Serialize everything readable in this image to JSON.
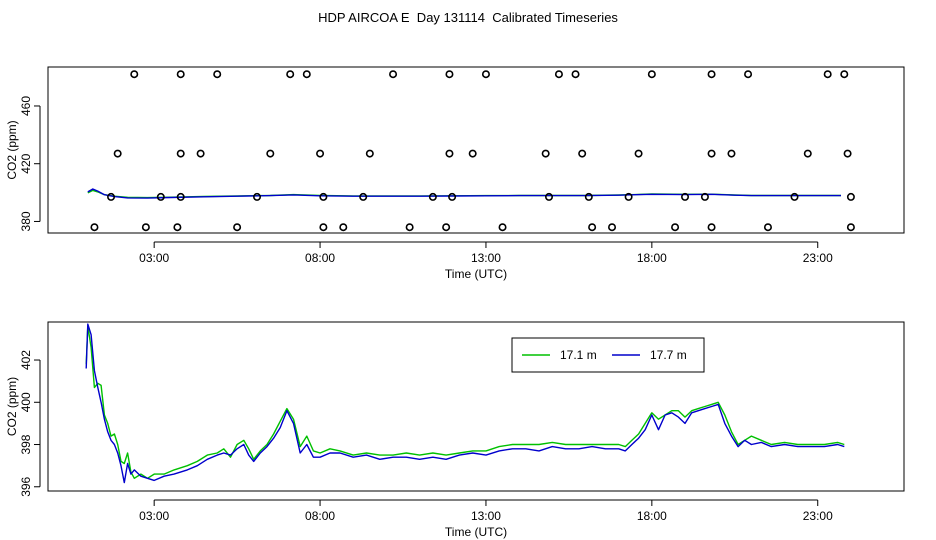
{
  "title": "HDP AIRCOA E  Day 131114  Calibrated Timeseries",
  "chart_data": [
    {
      "type": "scatter+line",
      "xlabel": "Time (UTC)",
      "ylabel": "CO2 (ppm)",
      "x_ticks": [
        {
          "hour": 3,
          "label": "03:00"
        },
        {
          "hour": 8,
          "label": "08:00"
        },
        {
          "hour": 13,
          "label": "13:00"
        },
        {
          "hour": 18,
          "label": "18:00"
        },
        {
          "hour": 23,
          "label": "23:00"
        }
      ],
      "y_ticks": [
        {
          "value": 380,
          "label": "380"
        },
        {
          "value": 420,
          "label": "420"
        },
        {
          "value": 460,
          "label": "460"
        }
      ],
      "xlim": [
        -0.2,
        25.6
      ],
      "ylim": [
        372,
        487
      ],
      "grid": false,
      "line_series": [
        {
          "color": "#00c000",
          "x": [
            1.0,
            1.15,
            1.3,
            1.5,
            1.8,
            2.2,
            2.8,
            3.5,
            4.5,
            5.5,
            6.5,
            7.2,
            8,
            9,
            10,
            11,
            12,
            13,
            14,
            15,
            16,
            17,
            17.5,
            18,
            19,
            19.8,
            20.5,
            21,
            22,
            23,
            23.7
          ],
          "y": [
            399.8,
            401.5,
            400.5,
            398.5,
            397.5,
            396.7,
            396.5,
            396.8,
            397.3,
            397.6,
            398.0,
            398.6,
            398.0,
            397.7,
            397.7,
            397.7,
            397.8,
            397.9,
            398.0,
            398.0,
            398.0,
            398.3,
            398.6,
            399.0,
            398.8,
            398.9,
            398.3,
            398.0,
            398.0,
            398.0,
            398.0
          ]
        },
        {
          "color": "#0000cc",
          "x": [
            1.0,
            1.15,
            1.3,
            1.5,
            1.8,
            2.2,
            2.8,
            3.5,
            4.5,
            5.5,
            6.5,
            7.2,
            8,
            9,
            10,
            11,
            12,
            13,
            14,
            15,
            16,
            17,
            17.5,
            18,
            19,
            19.8,
            20.5,
            21,
            22,
            23,
            23.7
          ],
          "y": [
            400.5,
            402.5,
            401.0,
            398.5,
            397.2,
            396.3,
            396.2,
            396.6,
            397.1,
            397.5,
            397.9,
            398.4,
            397.8,
            397.5,
            397.5,
            397.5,
            397.6,
            397.8,
            397.9,
            397.9,
            397.9,
            398.2,
            398.5,
            398.8,
            398.6,
            398.8,
            398.2,
            397.9,
            397.9,
            397.9,
            397.9
          ]
        }
      ],
      "points": [
        {
          "x": 1.7,
          "y": 397
        },
        {
          "x": 3.2,
          "y": 397
        },
        {
          "x": 3.8,
          "y": 397
        },
        {
          "x": 6.1,
          "y": 397
        },
        {
          "x": 8.1,
          "y": 397
        },
        {
          "x": 9.3,
          "y": 397
        },
        {
          "x": 11.4,
          "y": 397
        },
        {
          "x": 11.98,
          "y": 397
        },
        {
          "x": 14.9,
          "y": 397
        },
        {
          "x": 16.1,
          "y": 397
        },
        {
          "x": 17.3,
          "y": 397
        },
        {
          "x": 19.0,
          "y": 397
        },
        {
          "x": 19.6,
          "y": 397
        },
        {
          "x": 22.3,
          "y": 397
        },
        {
          "x": 24.0,
          "y": 397
        },
        {
          "x": 1.2,
          "y": 376
        },
        {
          "x": 2.75,
          "y": 376
        },
        {
          "x": 3.7,
          "y": 376
        },
        {
          "x": 5.5,
          "y": 376
        },
        {
          "x": 8.1,
          "y": 376
        },
        {
          "x": 8.7,
          "y": 376
        },
        {
          "x": 10.7,
          "y": 376
        },
        {
          "x": 11.8,
          "y": 376
        },
        {
          "x": 13.5,
          "y": 376
        },
        {
          "x": 16.2,
          "y": 376
        },
        {
          "x": 16.8,
          "y": 376
        },
        {
          "x": 18.7,
          "y": 376
        },
        {
          "x": 19.8,
          "y": 376
        },
        {
          "x": 21.5,
          "y": 376
        },
        {
          "x": 24.0,
          "y": 376
        },
        {
          "x": 1.9,
          "y": 427
        },
        {
          "x": 3.8,
          "y": 427
        },
        {
          "x": 4.4,
          "y": 427
        },
        {
          "x": 6.5,
          "y": 427
        },
        {
          "x": 8.0,
          "y": 427
        },
        {
          "x": 9.5,
          "y": 427
        },
        {
          "x": 11.9,
          "y": 427
        },
        {
          "x": 12.6,
          "y": 427
        },
        {
          "x": 14.8,
          "y": 427
        },
        {
          "x": 15.9,
          "y": 427
        },
        {
          "x": 17.6,
          "y": 427
        },
        {
          "x": 19.8,
          "y": 427
        },
        {
          "x": 20.4,
          "y": 427
        },
        {
          "x": 22.7,
          "y": 427
        },
        {
          "x": 23.9,
          "y": 427
        },
        {
          "x": 2.4,
          "y": 482
        },
        {
          "x": 3.8,
          "y": 482
        },
        {
          "x": 4.9,
          "y": 482
        },
        {
          "x": 7.1,
          "y": 482
        },
        {
          "x": 7.6,
          "y": 482
        },
        {
          "x": 10.2,
          "y": 482
        },
        {
          "x": 11.9,
          "y": 482
        },
        {
          "x": 13.0,
          "y": 482
        },
        {
          "x": 15.2,
          "y": 482
        },
        {
          "x": 15.7,
          "y": 482
        },
        {
          "x": 18.0,
          "y": 482
        },
        {
          "x": 19.8,
          "y": 482
        },
        {
          "x": 20.9,
          "y": 482
        },
        {
          "x": 23.3,
          "y": 482
        },
        {
          "x": 23.8,
          "y": 482
        }
      ]
    },
    {
      "type": "line",
      "xlabel": "Time (UTC)",
      "ylabel": "CO2 (ppm)",
      "x_ticks": [
        {
          "hour": 3,
          "label": "03:00"
        },
        {
          "hour": 8,
          "label": "08:00"
        },
        {
          "hour": 13,
          "label": "13:00"
        },
        {
          "hour": 18,
          "label": "18:00"
        },
        {
          "hour": 23,
          "label": "23:00"
        }
      ],
      "y_ticks": [
        {
          "value": 396,
          "label": "396"
        },
        {
          "value": 398,
          "label": "398"
        },
        {
          "value": 400,
          "label": "400"
        },
        {
          "value": 402,
          "label": "402"
        }
      ],
      "xlim": [
        -0.2,
        25.6
      ],
      "ylim": [
        395.8,
        403.8
      ],
      "grid": false,
      "legend_position": "top-right",
      "series": [
        {
          "name": "17.1 m",
          "color": "#00c000",
          "x": [
            0.95,
            1.0,
            1.1,
            1.2,
            1.3,
            1.4,
            1.5,
            1.6,
            1.7,
            1.8,
            1.9,
            2.0,
            2.1,
            2.2,
            2.3,
            2.4,
            2.6,
            2.8,
            3.0,
            3.3,
            3.6,
            4.0,
            4.3,
            4.6,
            4.9,
            5.1,
            5.3,
            5.5,
            5.7,
            5.85,
            6.0,
            6.2,
            6.4,
            6.6,
            6.8,
            7.0,
            7.2,
            7.4,
            7.6,
            7.8,
            8.0,
            8.3,
            8.6,
            9.0,
            9.4,
            9.8,
            10.2,
            10.6,
            11.0,
            11.4,
            11.8,
            12.2,
            12.6,
            13.0,
            13.4,
            13.8,
            14.2,
            14.6,
            15.0,
            15.4,
            15.8,
            16.2,
            16.6,
            17.0,
            17.2,
            17.4,
            17.6,
            17.8,
            18.0,
            18.2,
            18.4,
            18.6,
            18.8,
            19.0,
            19.2,
            19.4,
            19.6,
            19.8,
            20.0,
            20.2,
            20.4,
            20.6,
            20.8,
            21.0,
            21.3,
            21.6,
            22.0,
            22.4,
            22.8,
            23.2,
            23.6,
            23.8
          ],
          "y": [
            401.8,
            403.6,
            402.6,
            400.7,
            400.9,
            400.8,
            399.4,
            399.0,
            398.4,
            398.5,
            398.0,
            397.2,
            397.1,
            397.6,
            396.7,
            396.4,
            396.6,
            396.4,
            396.6,
            396.6,
            396.8,
            397.0,
            397.2,
            397.5,
            397.6,
            397.8,
            397.4,
            398.0,
            398.2,
            397.8,
            397.3,
            397.7,
            398.0,
            398.5,
            399.1,
            399.7,
            399.2,
            397.9,
            398.4,
            397.7,
            397.6,
            397.8,
            397.7,
            397.5,
            397.6,
            397.5,
            397.5,
            397.6,
            397.5,
            397.6,
            397.5,
            397.6,
            397.7,
            397.7,
            397.9,
            398.0,
            398.0,
            398.0,
            398.1,
            398.0,
            398.0,
            398.0,
            398.0,
            398.0,
            397.9,
            398.2,
            398.5,
            399.0,
            399.5,
            399.2,
            399.4,
            399.6,
            399.6,
            399.3,
            399.6,
            399.7,
            399.8,
            399.9,
            400.0,
            399.4,
            398.6,
            398.0,
            398.2,
            398.4,
            398.2,
            398.0,
            398.1,
            398.0,
            398.0,
            398.0,
            398.1,
            398.0
          ]
        },
        {
          "name": "17.7 m",
          "color": "#0000cc",
          "x": [
            0.95,
            1.0,
            1.1,
            1.2,
            1.3,
            1.4,
            1.5,
            1.6,
            1.7,
            1.8,
            1.9,
            2.0,
            2.1,
            2.2,
            2.3,
            2.4,
            2.6,
            2.8,
            3.0,
            3.3,
            3.6,
            4.0,
            4.3,
            4.6,
            4.9,
            5.1,
            5.3,
            5.5,
            5.7,
            5.85,
            6.0,
            6.2,
            6.4,
            6.6,
            6.8,
            7.0,
            7.2,
            7.4,
            7.6,
            7.8,
            8.0,
            8.3,
            8.6,
            9.0,
            9.4,
            9.8,
            10.2,
            10.6,
            11.0,
            11.4,
            11.8,
            12.2,
            12.6,
            13.0,
            13.4,
            13.8,
            14.2,
            14.6,
            15.0,
            15.4,
            15.8,
            16.2,
            16.6,
            17.0,
            17.2,
            17.4,
            17.6,
            17.8,
            18.0,
            18.2,
            18.4,
            18.6,
            18.8,
            19.0,
            19.2,
            19.4,
            19.6,
            19.8,
            20.0,
            20.2,
            20.4,
            20.6,
            20.8,
            21.0,
            21.3,
            21.6,
            22.0,
            22.4,
            22.8,
            23.2,
            23.6,
            23.8
          ],
          "y": [
            401.6,
            403.7,
            403.2,
            401.5,
            400.7,
            400.0,
            399.2,
            398.6,
            398.2,
            398.0,
            397.6,
            397.0,
            396.2,
            397.1,
            396.6,
            396.8,
            396.5,
            396.4,
            396.3,
            396.5,
            396.6,
            396.8,
            397.0,
            397.3,
            397.5,
            397.6,
            397.5,
            397.8,
            398.0,
            397.5,
            397.2,
            397.6,
            397.9,
            398.3,
            398.8,
            399.6,
            399.0,
            397.6,
            398.0,
            397.4,
            397.4,
            397.6,
            397.6,
            397.4,
            397.5,
            397.3,
            397.4,
            397.4,
            397.3,
            397.4,
            397.3,
            397.5,
            397.6,
            397.5,
            397.7,
            397.8,
            397.8,
            397.7,
            397.9,
            397.8,
            397.8,
            397.9,
            397.8,
            397.8,
            397.7,
            398.0,
            398.3,
            398.7,
            399.4,
            398.7,
            399.4,
            399.5,
            399.3,
            399.0,
            399.5,
            399.6,
            399.7,
            399.8,
            399.9,
            399.0,
            398.4,
            397.9,
            398.2,
            398.0,
            398.1,
            397.9,
            398.0,
            397.9,
            397.9,
            397.9,
            398.0,
            397.9
          ]
        }
      ]
    }
  ]
}
